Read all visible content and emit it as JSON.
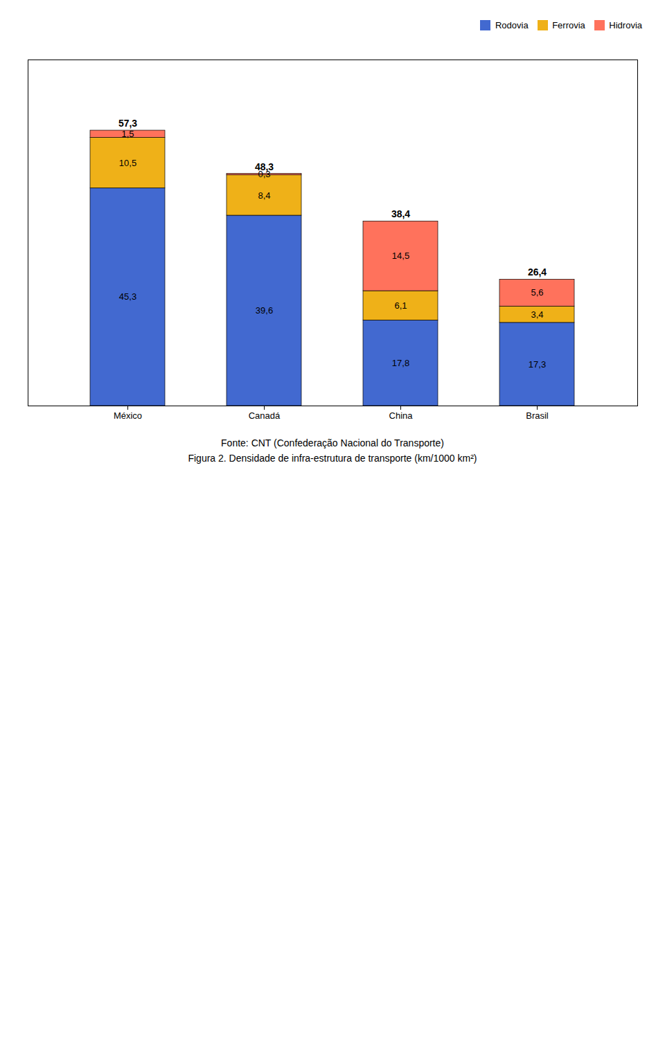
{
  "chart_data": {
    "type": "bar",
    "stacked": true,
    "title": "Figura 2. Densidade de infra-estrutura de transporte (km/1000 km²)",
    "caption": "Fonte: CNT (Confederação Nacional do Transporte)",
    "categories": [
      "México",
      "Canadá",
      "China",
      "Brasil"
    ],
    "series": [
      {
        "name": "Rodovia",
        "values": [
          45.3,
          39.6,
          17.8,
          17.3
        ],
        "value_labels": [
          "45,3",
          "39,6",
          "17,8",
          "17,3"
        ]
      },
      {
        "name": "Ferrovia",
        "values": [
          10.5,
          8.4,
          6.1,
          3.4
        ],
        "value_labels": [
          "10,5",
          "8,4",
          "6,1",
          "3,4"
        ]
      },
      {
        "name": "Hidrovia",
        "values": [
          1.5,
          0.3,
          14.5,
          5.6
        ],
        "value_labels": [
          "1,5",
          "0,3",
          "14,5",
          "5,6"
        ]
      }
    ],
    "annotations": [
      {
        "category": "México",
        "value": 57.3,
        "label": "57,3"
      },
      {
        "category": "Canadá",
        "value": 48.3,
        "label": "48,3"
      },
      {
        "category": "China",
        "value": 38.4,
        "label": "38,4"
      },
      {
        "category": "Brasil",
        "value": 26.4,
        "label": "26,4"
      }
    ],
    "ylim": [
      0,
      72
    ],
    "tick_labels": "x",
    "grid": false,
    "legend": "upper right",
    "data_labels": true
  }
}
